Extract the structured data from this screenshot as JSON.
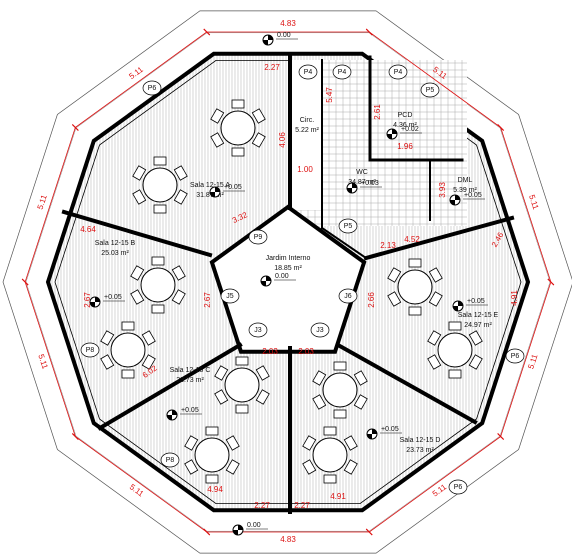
{
  "perimeter_dimensions": [
    "4.83",
    "5.11",
    "5.11",
    "5.11",
    "5.11",
    "4.83",
    "5.11",
    "5.11",
    "5.11",
    "5.11"
  ],
  "rooms": [
    {
      "name": "Sala 12-15 A",
      "area": "31.87 m²"
    },
    {
      "name": "Sala 12-15 B",
      "area": "25.03 m²"
    },
    {
      "name": "Sala 12-15 C",
      "area": "23.73 m²"
    },
    {
      "name": "Sala 12-15 D",
      "area": "23.73 m²"
    },
    {
      "name": "Sala 12-15 E",
      "area": "24.97 m²"
    },
    {
      "name": "Jardim Interno",
      "area": "18.85 m²"
    },
    {
      "name": "Circ.",
      "area": "5.22 m²"
    },
    {
      "name": "WC",
      "area": "34.87 m²"
    },
    {
      "name": "PCD",
      "area": "4.36 m²"
    },
    {
      "name": "DML",
      "area": "5.39 m²"
    }
  ],
  "levels": [
    "0.00",
    "0.00",
    "0.00",
    "+0.05",
    "+0.05",
    "+0.05",
    "+0.05",
    "+0.05",
    "+0.03",
    "+0.02",
    "+0.05"
  ],
  "tags": [
    "P4",
    "P4",
    "P4",
    "P6",
    "P6",
    "P6",
    "P8",
    "P8",
    "P9",
    "J5",
    "J6",
    "J3",
    "J3",
    "P5",
    "P5"
  ],
  "inner_dimensions": [
    "2.27",
    "4.06",
    "5.47",
    "1.00",
    "3.32",
    "4.64",
    "2.67",
    "2.67",
    "2.03",
    "2.03",
    "6.02",
    "4.94",
    "2.27",
    "2.27",
    "4.91",
    "2.66",
    "4.52",
    "2.13",
    "4.91",
    "2.46",
    "2.61",
    "1.96",
    "3.93"
  ]
}
